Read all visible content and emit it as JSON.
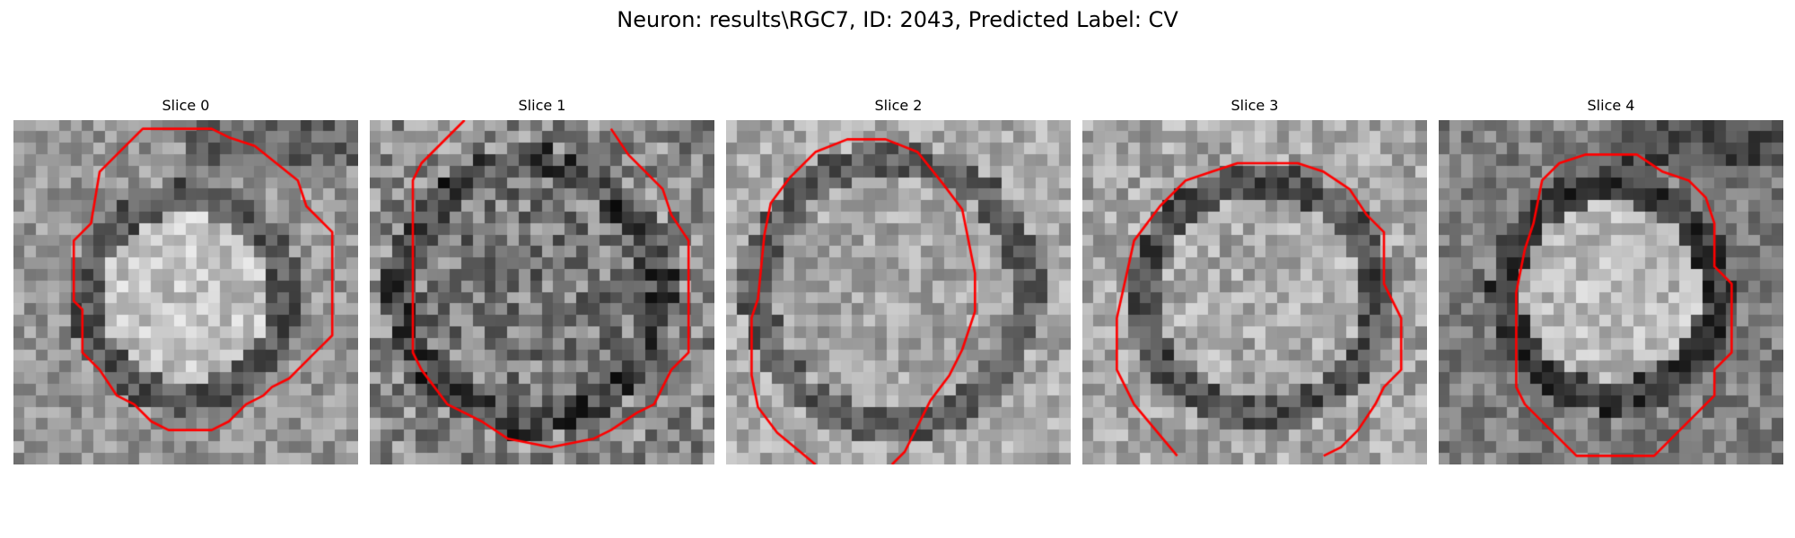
{
  "figure": {
    "title": "Neuron: results\\RGC7, ID: 2043, Predicted Label: CV",
    "contour_color": "#ff0000"
  },
  "panels": [
    {
      "title": "Slice 0"
    },
    {
      "title": "Slice 1"
    },
    {
      "title": "Slice 2"
    },
    {
      "title": "Slice 3"
    },
    {
      "title": "Slice 4"
    }
  ]
}
